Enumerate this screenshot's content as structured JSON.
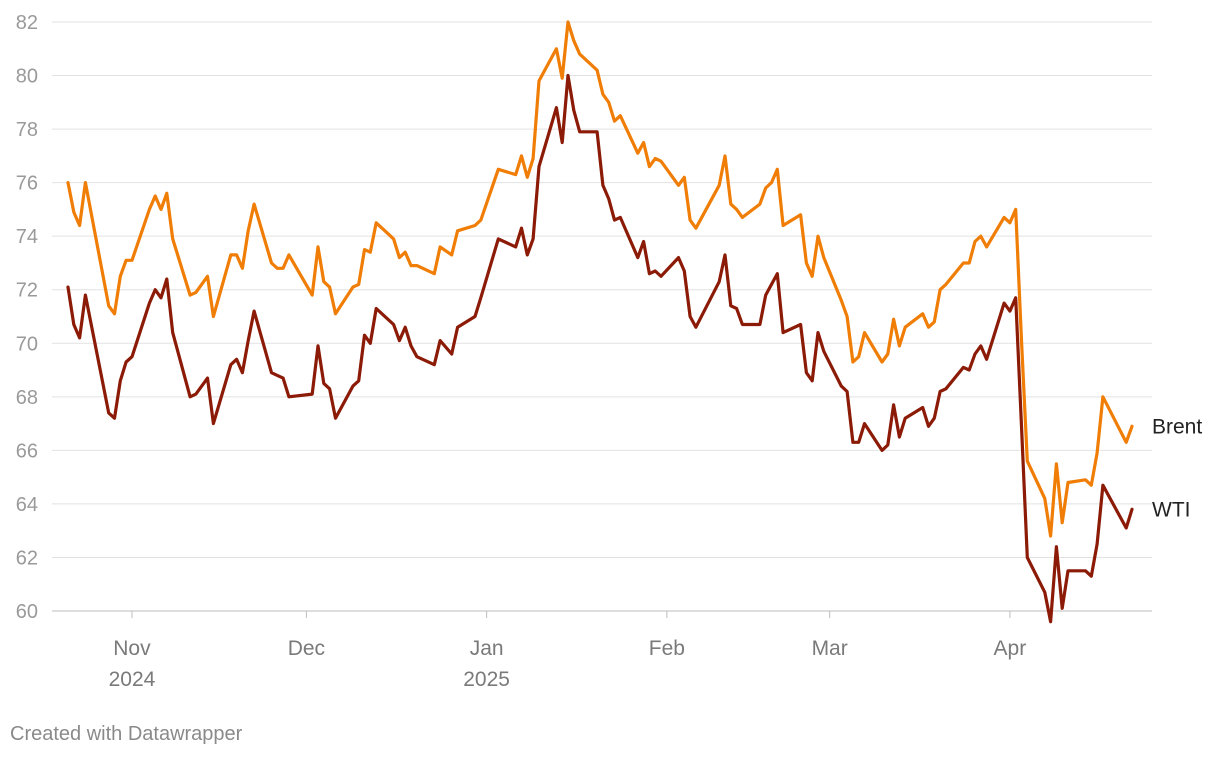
{
  "chart_data": {
    "type": "line",
    "title": "",
    "xlabel": "",
    "ylabel": "",
    "ylim": [
      60,
      82
    ],
    "yticks": [
      60,
      62,
      64,
      66,
      68,
      70,
      72,
      74,
      76,
      78,
      80,
      82
    ],
    "x_range": [
      "2024-10-21",
      "2025-04-22"
    ],
    "grid": true,
    "xticks": [
      {
        "date": "2024-11-01",
        "label": "Nov",
        "sublabel": "2024"
      },
      {
        "date": "2024-12-01",
        "label": "Dec",
        "sublabel": ""
      },
      {
        "date": "2025-01-01",
        "label": "Jan",
        "sublabel": "2025"
      },
      {
        "date": "2025-02-01",
        "label": "Feb",
        "sublabel": ""
      },
      {
        "date": "2025-03-01",
        "label": "Mar",
        "sublabel": ""
      },
      {
        "date": "2025-04-01",
        "label": "Apr",
        "sublabel": ""
      }
    ],
    "series": [
      {
        "name": "Brent",
        "color": "#f07d06",
        "points": [
          [
            "2024-10-21",
            76.0
          ],
          [
            "2024-10-22",
            74.9
          ],
          [
            "2024-10-23",
            74.4
          ],
          [
            "2024-10-24",
            76.0
          ],
          [
            "2024-10-28",
            71.4
          ],
          [
            "2024-10-29",
            71.1
          ],
          [
            "2024-10-30",
            72.5
          ],
          [
            "2024-10-31",
            73.1
          ],
          [
            "2024-11-01",
            73.1
          ],
          [
            "2024-11-04",
            75.0
          ],
          [
            "2024-11-05",
            75.5
          ],
          [
            "2024-11-06",
            75.0
          ],
          [
            "2024-11-07",
            75.6
          ],
          [
            "2024-11-08",
            73.9
          ],
          [
            "2024-11-11",
            71.8
          ],
          [
            "2024-11-12",
            71.9
          ],
          [
            "2024-11-14",
            72.5
          ],
          [
            "2024-11-15",
            71.0
          ],
          [
            "2024-11-18",
            73.3
          ],
          [
            "2024-11-19",
            73.3
          ],
          [
            "2024-11-20",
            72.8
          ],
          [
            "2024-11-21",
            74.2
          ],
          [
            "2024-11-22",
            75.2
          ],
          [
            "2024-11-25",
            73.0
          ],
          [
            "2024-11-26",
            72.8
          ],
          [
            "2024-11-27",
            72.8
          ],
          [
            "2024-11-28",
            73.3
          ],
          [
            "2024-12-02",
            71.8
          ],
          [
            "2024-12-03",
            73.6
          ],
          [
            "2024-12-04",
            72.3
          ],
          [
            "2024-12-05",
            72.1
          ],
          [
            "2024-12-06",
            71.1
          ],
          [
            "2024-12-09",
            72.1
          ],
          [
            "2024-12-10",
            72.2
          ],
          [
            "2024-12-11",
            73.5
          ],
          [
            "2024-12-12",
            73.4
          ],
          [
            "2024-12-13",
            74.5
          ],
          [
            "2024-12-16",
            73.9
          ],
          [
            "2024-12-17",
            73.2
          ],
          [
            "2024-12-18",
            73.4
          ],
          [
            "2024-12-19",
            72.9
          ],
          [
            "2024-12-20",
            72.9
          ],
          [
            "2024-12-23",
            72.6
          ],
          [
            "2024-12-24",
            73.6
          ],
          [
            "2024-12-26",
            73.3
          ],
          [
            "2024-12-27",
            74.2
          ],
          [
            "2024-12-30",
            74.4
          ],
          [
            "2024-12-31",
            74.6
          ],
          [
            "2025-01-03",
            76.5
          ],
          [
            "2025-01-06",
            76.3
          ],
          [
            "2025-01-07",
            77.0
          ],
          [
            "2025-01-08",
            76.2
          ],
          [
            "2025-01-09",
            76.9
          ],
          [
            "2025-01-10",
            79.8
          ],
          [
            "2025-01-13",
            81.0
          ],
          [
            "2025-01-14",
            79.9
          ],
          [
            "2025-01-15",
            82.0
          ],
          [
            "2025-01-16",
            81.3
          ],
          [
            "2025-01-17",
            80.8
          ],
          [
            "2025-01-20",
            80.2
          ],
          [
            "2025-01-21",
            79.3
          ],
          [
            "2025-01-22",
            79.0
          ],
          [
            "2025-01-23",
            78.3
          ],
          [
            "2025-01-24",
            78.5
          ],
          [
            "2025-01-27",
            77.1
          ],
          [
            "2025-01-28",
            77.5
          ],
          [
            "2025-01-29",
            76.6
          ],
          [
            "2025-01-30",
            76.9
          ],
          [
            "2025-01-31",
            76.8
          ],
          [
            "2025-02-03",
            75.9
          ],
          [
            "2025-02-04",
            76.2
          ],
          [
            "2025-02-05",
            74.6
          ],
          [
            "2025-02-06",
            74.3
          ],
          [
            "2025-02-10",
            75.9
          ],
          [
            "2025-02-11",
            77.0
          ],
          [
            "2025-02-12",
            75.2
          ],
          [
            "2025-02-13",
            75.0
          ],
          [
            "2025-02-14",
            74.7
          ],
          [
            "2025-02-17",
            75.2
          ],
          [
            "2025-02-18",
            75.8
          ],
          [
            "2025-02-19",
            76.0
          ],
          [
            "2025-02-20",
            76.5
          ],
          [
            "2025-02-21",
            74.4
          ],
          [
            "2025-02-24",
            74.8
          ],
          [
            "2025-02-25",
            73.0
          ],
          [
            "2025-02-26",
            72.5
          ],
          [
            "2025-02-27",
            74.0
          ],
          [
            "2025-02-28",
            73.2
          ],
          [
            "2025-03-03",
            71.6
          ],
          [
            "2025-03-04",
            71.0
          ],
          [
            "2025-03-05",
            69.3
          ],
          [
            "2025-03-06",
            69.5
          ],
          [
            "2025-03-07",
            70.4
          ],
          [
            "2025-03-10",
            69.3
          ],
          [
            "2025-03-11",
            69.6
          ],
          [
            "2025-03-12",
            70.9
          ],
          [
            "2025-03-13",
            69.9
          ],
          [
            "2025-03-14",
            70.6
          ],
          [
            "2025-03-17",
            71.1
          ],
          [
            "2025-03-18",
            70.6
          ],
          [
            "2025-03-19",
            70.8
          ],
          [
            "2025-03-20",
            72.0
          ],
          [
            "2025-03-21",
            72.2
          ],
          [
            "2025-03-24",
            73.0
          ],
          [
            "2025-03-25",
            73.0
          ],
          [
            "2025-03-26",
            73.8
          ],
          [
            "2025-03-27",
            74.0
          ],
          [
            "2025-03-28",
            73.6
          ],
          [
            "2025-03-31",
            74.7
          ],
          [
            "2025-04-01",
            74.5
          ],
          [
            "2025-04-02",
            75.0
          ],
          [
            "2025-04-03",
            70.1
          ],
          [
            "2025-04-04",
            65.6
          ],
          [
            "2025-04-07",
            64.2
          ],
          [
            "2025-04-08",
            62.8
          ],
          [
            "2025-04-09",
            65.5
          ],
          [
            "2025-04-10",
            63.3
          ],
          [
            "2025-04-11",
            64.8
          ],
          [
            "2025-04-14",
            64.9
          ],
          [
            "2025-04-15",
            64.7
          ],
          [
            "2025-04-16",
            65.9
          ],
          [
            "2025-04-17",
            68.0
          ],
          [
            "2025-04-21",
            66.3
          ],
          [
            "2025-04-22",
            66.9
          ]
        ]
      },
      {
        "name": "WTI",
        "color": "#8b1a06",
        "points": [
          [
            "2024-10-21",
            72.1
          ],
          [
            "2024-10-22",
            70.7
          ],
          [
            "2024-10-23",
            70.2
          ],
          [
            "2024-10-24",
            71.8
          ],
          [
            "2024-10-28",
            67.4
          ],
          [
            "2024-10-29",
            67.2
          ],
          [
            "2024-10-30",
            68.6
          ],
          [
            "2024-10-31",
            69.3
          ],
          [
            "2024-11-01",
            69.5
          ],
          [
            "2024-11-04",
            71.5
          ],
          [
            "2024-11-05",
            72.0
          ],
          [
            "2024-11-06",
            71.7
          ],
          [
            "2024-11-07",
            72.4
          ],
          [
            "2024-11-08",
            70.4
          ],
          [
            "2024-11-11",
            68.0
          ],
          [
            "2024-11-12",
            68.1
          ],
          [
            "2024-11-14",
            68.7
          ],
          [
            "2024-11-15",
            67.0
          ],
          [
            "2024-11-18",
            69.2
          ],
          [
            "2024-11-19",
            69.4
          ],
          [
            "2024-11-20",
            68.9
          ],
          [
            "2024-11-21",
            70.1
          ],
          [
            "2024-11-22",
            71.2
          ],
          [
            "2024-11-25",
            68.9
          ],
          [
            "2024-11-26",
            68.8
          ],
          [
            "2024-11-27",
            68.7
          ],
          [
            "2024-11-28",
            68.0
          ],
          [
            "2024-12-02",
            68.1
          ],
          [
            "2024-12-03",
            69.9
          ],
          [
            "2024-12-04",
            68.5
          ],
          [
            "2024-12-05",
            68.3
          ],
          [
            "2024-12-06",
            67.2
          ],
          [
            "2024-12-09",
            68.4
          ],
          [
            "2024-12-10",
            68.6
          ],
          [
            "2024-12-11",
            70.3
          ],
          [
            "2024-12-12",
            70.0
          ],
          [
            "2024-12-13",
            71.3
          ],
          [
            "2024-12-16",
            70.7
          ],
          [
            "2024-12-17",
            70.1
          ],
          [
            "2024-12-18",
            70.6
          ],
          [
            "2024-12-19",
            69.9
          ],
          [
            "2024-12-20",
            69.5
          ],
          [
            "2024-12-23",
            69.2
          ],
          [
            "2024-12-24",
            70.1
          ],
          [
            "2024-12-26",
            69.6
          ],
          [
            "2024-12-27",
            70.6
          ],
          [
            "2024-12-30",
            71.0
          ],
          [
            "2024-12-31",
            71.7
          ],
          [
            "2025-01-03",
            73.9
          ],
          [
            "2025-01-06",
            73.6
          ],
          [
            "2025-01-07",
            74.3
          ],
          [
            "2025-01-08",
            73.3
          ],
          [
            "2025-01-09",
            73.9
          ],
          [
            "2025-01-10",
            76.6
          ],
          [
            "2025-01-13",
            78.8
          ],
          [
            "2025-01-14",
            77.5
          ],
          [
            "2025-01-15",
            80.0
          ],
          [
            "2025-01-16",
            78.7
          ],
          [
            "2025-01-17",
            77.9
          ],
          [
            "2025-01-20",
            77.9
          ],
          [
            "2025-01-21",
            75.9
          ],
          [
            "2025-01-22",
            75.4
          ],
          [
            "2025-01-23",
            74.6
          ],
          [
            "2025-01-24",
            74.7
          ],
          [
            "2025-01-27",
            73.2
          ],
          [
            "2025-01-28",
            73.8
          ],
          [
            "2025-01-29",
            72.6
          ],
          [
            "2025-01-30",
            72.7
          ],
          [
            "2025-01-31",
            72.5
          ],
          [
            "2025-02-03",
            73.2
          ],
          [
            "2025-02-04",
            72.7
          ],
          [
            "2025-02-05",
            71.0
          ],
          [
            "2025-02-06",
            70.6
          ],
          [
            "2025-02-10",
            72.3
          ],
          [
            "2025-02-11",
            73.3
          ],
          [
            "2025-02-12",
            71.4
          ],
          [
            "2025-02-13",
            71.3
          ],
          [
            "2025-02-14",
            70.7
          ],
          [
            "2025-02-17",
            70.7
          ],
          [
            "2025-02-18",
            71.8
          ],
          [
            "2025-02-19",
            72.2
          ],
          [
            "2025-02-20",
            72.6
          ],
          [
            "2025-02-21",
            70.4
          ],
          [
            "2025-02-24",
            70.7
          ],
          [
            "2025-02-25",
            68.9
          ],
          [
            "2025-02-26",
            68.6
          ],
          [
            "2025-02-27",
            70.4
          ],
          [
            "2025-02-28",
            69.7
          ],
          [
            "2025-03-03",
            68.4
          ],
          [
            "2025-03-04",
            68.2
          ],
          [
            "2025-03-05",
            66.3
          ],
          [
            "2025-03-06",
            66.3
          ],
          [
            "2025-03-07",
            67.0
          ],
          [
            "2025-03-10",
            66.0
          ],
          [
            "2025-03-11",
            66.2
          ],
          [
            "2025-03-12",
            67.7
          ],
          [
            "2025-03-13",
            66.5
          ],
          [
            "2025-03-14",
            67.2
          ],
          [
            "2025-03-17",
            67.6
          ],
          [
            "2025-03-18",
            66.9
          ],
          [
            "2025-03-19",
            67.2
          ],
          [
            "2025-03-20",
            68.2
          ],
          [
            "2025-03-21",
            68.3
          ],
          [
            "2025-03-24",
            69.1
          ],
          [
            "2025-03-25",
            69.0
          ],
          [
            "2025-03-26",
            69.6
          ],
          [
            "2025-03-27",
            69.9
          ],
          [
            "2025-03-28",
            69.4
          ],
          [
            "2025-03-31",
            71.5
          ],
          [
            "2025-04-01",
            71.2
          ],
          [
            "2025-04-02",
            71.7
          ],
          [
            "2025-04-03",
            66.9
          ],
          [
            "2025-04-04",
            62.0
          ],
          [
            "2025-04-07",
            60.7
          ],
          [
            "2025-04-08",
            59.6
          ],
          [
            "2025-04-09",
            62.4
          ],
          [
            "2025-04-10",
            60.1
          ],
          [
            "2025-04-11",
            61.5
          ],
          [
            "2025-04-14",
            61.5
          ],
          [
            "2025-04-15",
            61.3
          ],
          [
            "2025-04-16",
            62.5
          ],
          [
            "2025-04-17",
            64.7
          ],
          [
            "2025-04-21",
            63.1
          ],
          [
            "2025-04-22",
            63.8
          ]
        ]
      }
    ]
  },
  "footer": {
    "credit": "Created with Datawrapper"
  }
}
